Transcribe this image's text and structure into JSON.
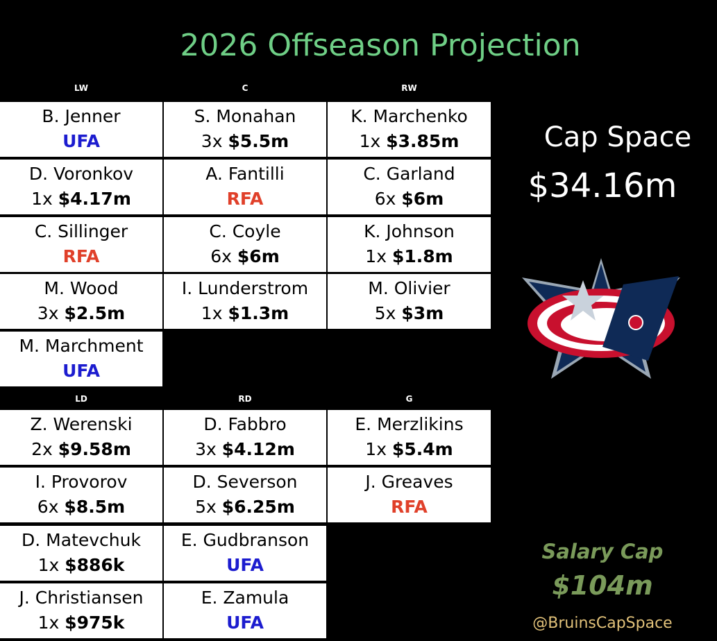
{
  "title": "2026 Offseason Projection",
  "status_colors": {
    "UFA": "#1c1ccf",
    "RFA": "#e0402a"
  },
  "sections": [
    {
      "columns": [
        {
          "header": "LW",
          "players": [
            {
              "name": "B. Jenner",
              "status": "UFA"
            },
            {
              "name": "D. Voronkov",
              "years": "1x",
              "amount": "$4.17m"
            },
            {
              "name": "C. Sillinger",
              "status": "RFA"
            },
            {
              "name": "M. Wood",
              "years": "3x",
              "amount": "$2.5m"
            },
            {
              "name": "M. Marchment",
              "status": "UFA"
            }
          ]
        },
        {
          "header": "C",
          "players": [
            {
              "name": "S. Monahan",
              "years": "3x",
              "amount": "$5.5m"
            },
            {
              "name": "A. Fantilli",
              "status": "RFA"
            },
            {
              "name": "C. Coyle",
              "years": "6x",
              "amount": "$6m"
            },
            {
              "name": "I. Lunderstrom",
              "years": "1x",
              "amount": "$1.3m"
            }
          ]
        },
        {
          "header": "RW",
          "players": [
            {
              "name": "K. Marchenko",
              "years": "1x",
              "amount": "$3.85m"
            },
            {
              "name": "C. Garland",
              "years": "6x",
              "amount": "$6m"
            },
            {
              "name": "K. Johnson",
              "years": "1x",
              "amount": "$1.8m"
            },
            {
              "name": "M. Olivier",
              "years": "5x",
              "amount": "$3m"
            }
          ]
        }
      ]
    },
    {
      "columns": [
        {
          "header": "LD",
          "players": [
            {
              "name": "Z. Werenski",
              "years": "2x",
              "amount": "$9.58m"
            },
            {
              "name": "I. Provorov",
              "years": "6x",
              "amount": "$8.5m"
            },
            {
              "name": "D. Matevchuk",
              "years": "1x",
              "amount": "$886k"
            },
            {
              "name": "J. Christiansen",
              "years": "1x",
              "amount": "$975k"
            }
          ]
        },
        {
          "header": "RD",
          "players": [
            {
              "name": "D. Fabbro",
              "years": "3x",
              "amount": "$4.12m"
            },
            {
              "name": "D. Severson",
              "years": "5x",
              "amount": "$6.25m"
            },
            {
              "name": "E. Gudbranson",
              "status": "UFA"
            },
            {
              "name": "E. Zamula",
              "status": "UFA"
            }
          ]
        },
        {
          "header": "G",
          "players": [
            {
              "name": "E. Merzlikins",
              "years": "1x",
              "amount": "$5.4m"
            },
            {
              "name": "J. Greaves",
              "status": "RFA"
            }
          ]
        }
      ]
    }
  ],
  "cap_space": {
    "label": "Cap Space",
    "value": "$34.16m"
  },
  "salary_cap": {
    "label": "Salary Cap",
    "value": "$104m"
  },
  "credit": "@BruinsCapSpace"
}
